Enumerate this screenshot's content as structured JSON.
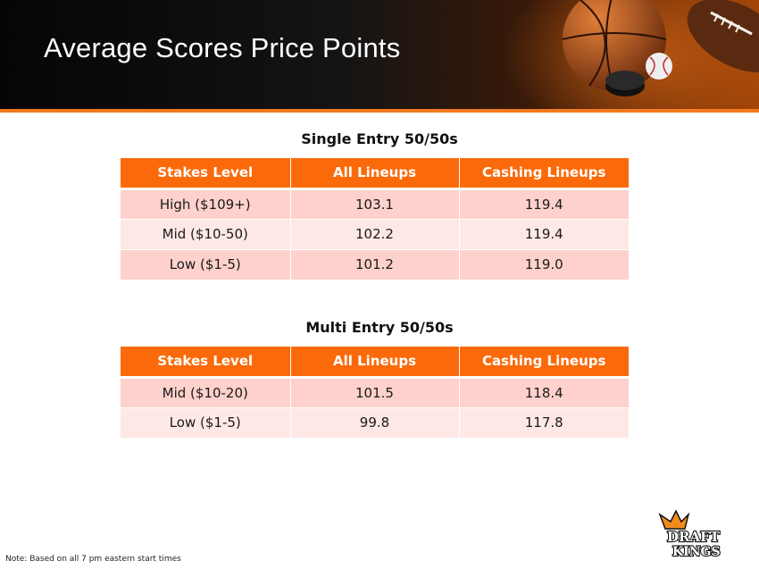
{
  "slide": {
    "title": "Average Scores Price Points"
  },
  "tables": [
    {
      "title": "Single Entry 50/50s",
      "headers": [
        "Stakes Level",
        "All Lineups",
        "Cashing Lineups"
      ],
      "rows": [
        [
          "High ($109+)",
          "103.1",
          "119.4"
        ],
        [
          "Mid ($10-50)",
          "102.2",
          "119.4"
        ],
        [
          "Low ($1-5)",
          "101.2",
          "119.0"
        ]
      ]
    },
    {
      "title": "Multi Entry 50/50s",
      "headers": [
        "Stakes Level",
        "All Lineups",
        "Cashing Lineups"
      ],
      "rows": [
        [
          "Mid ($10-20)",
          "101.5",
          "118.4"
        ],
        [
          "Low ($1-5)",
          "99.8",
          "117.8"
        ]
      ]
    }
  ],
  "note": "Note: Based on all 7 pm eastern start times",
  "logo": {
    "line1": "DRAFT",
    "line2": "KINGS"
  },
  "colors": {
    "header_orange": "#fb6a0a",
    "row_dark": "#fed1cc",
    "row_light": "#fee8e6",
    "accent_stripe": "#f47a20"
  }
}
